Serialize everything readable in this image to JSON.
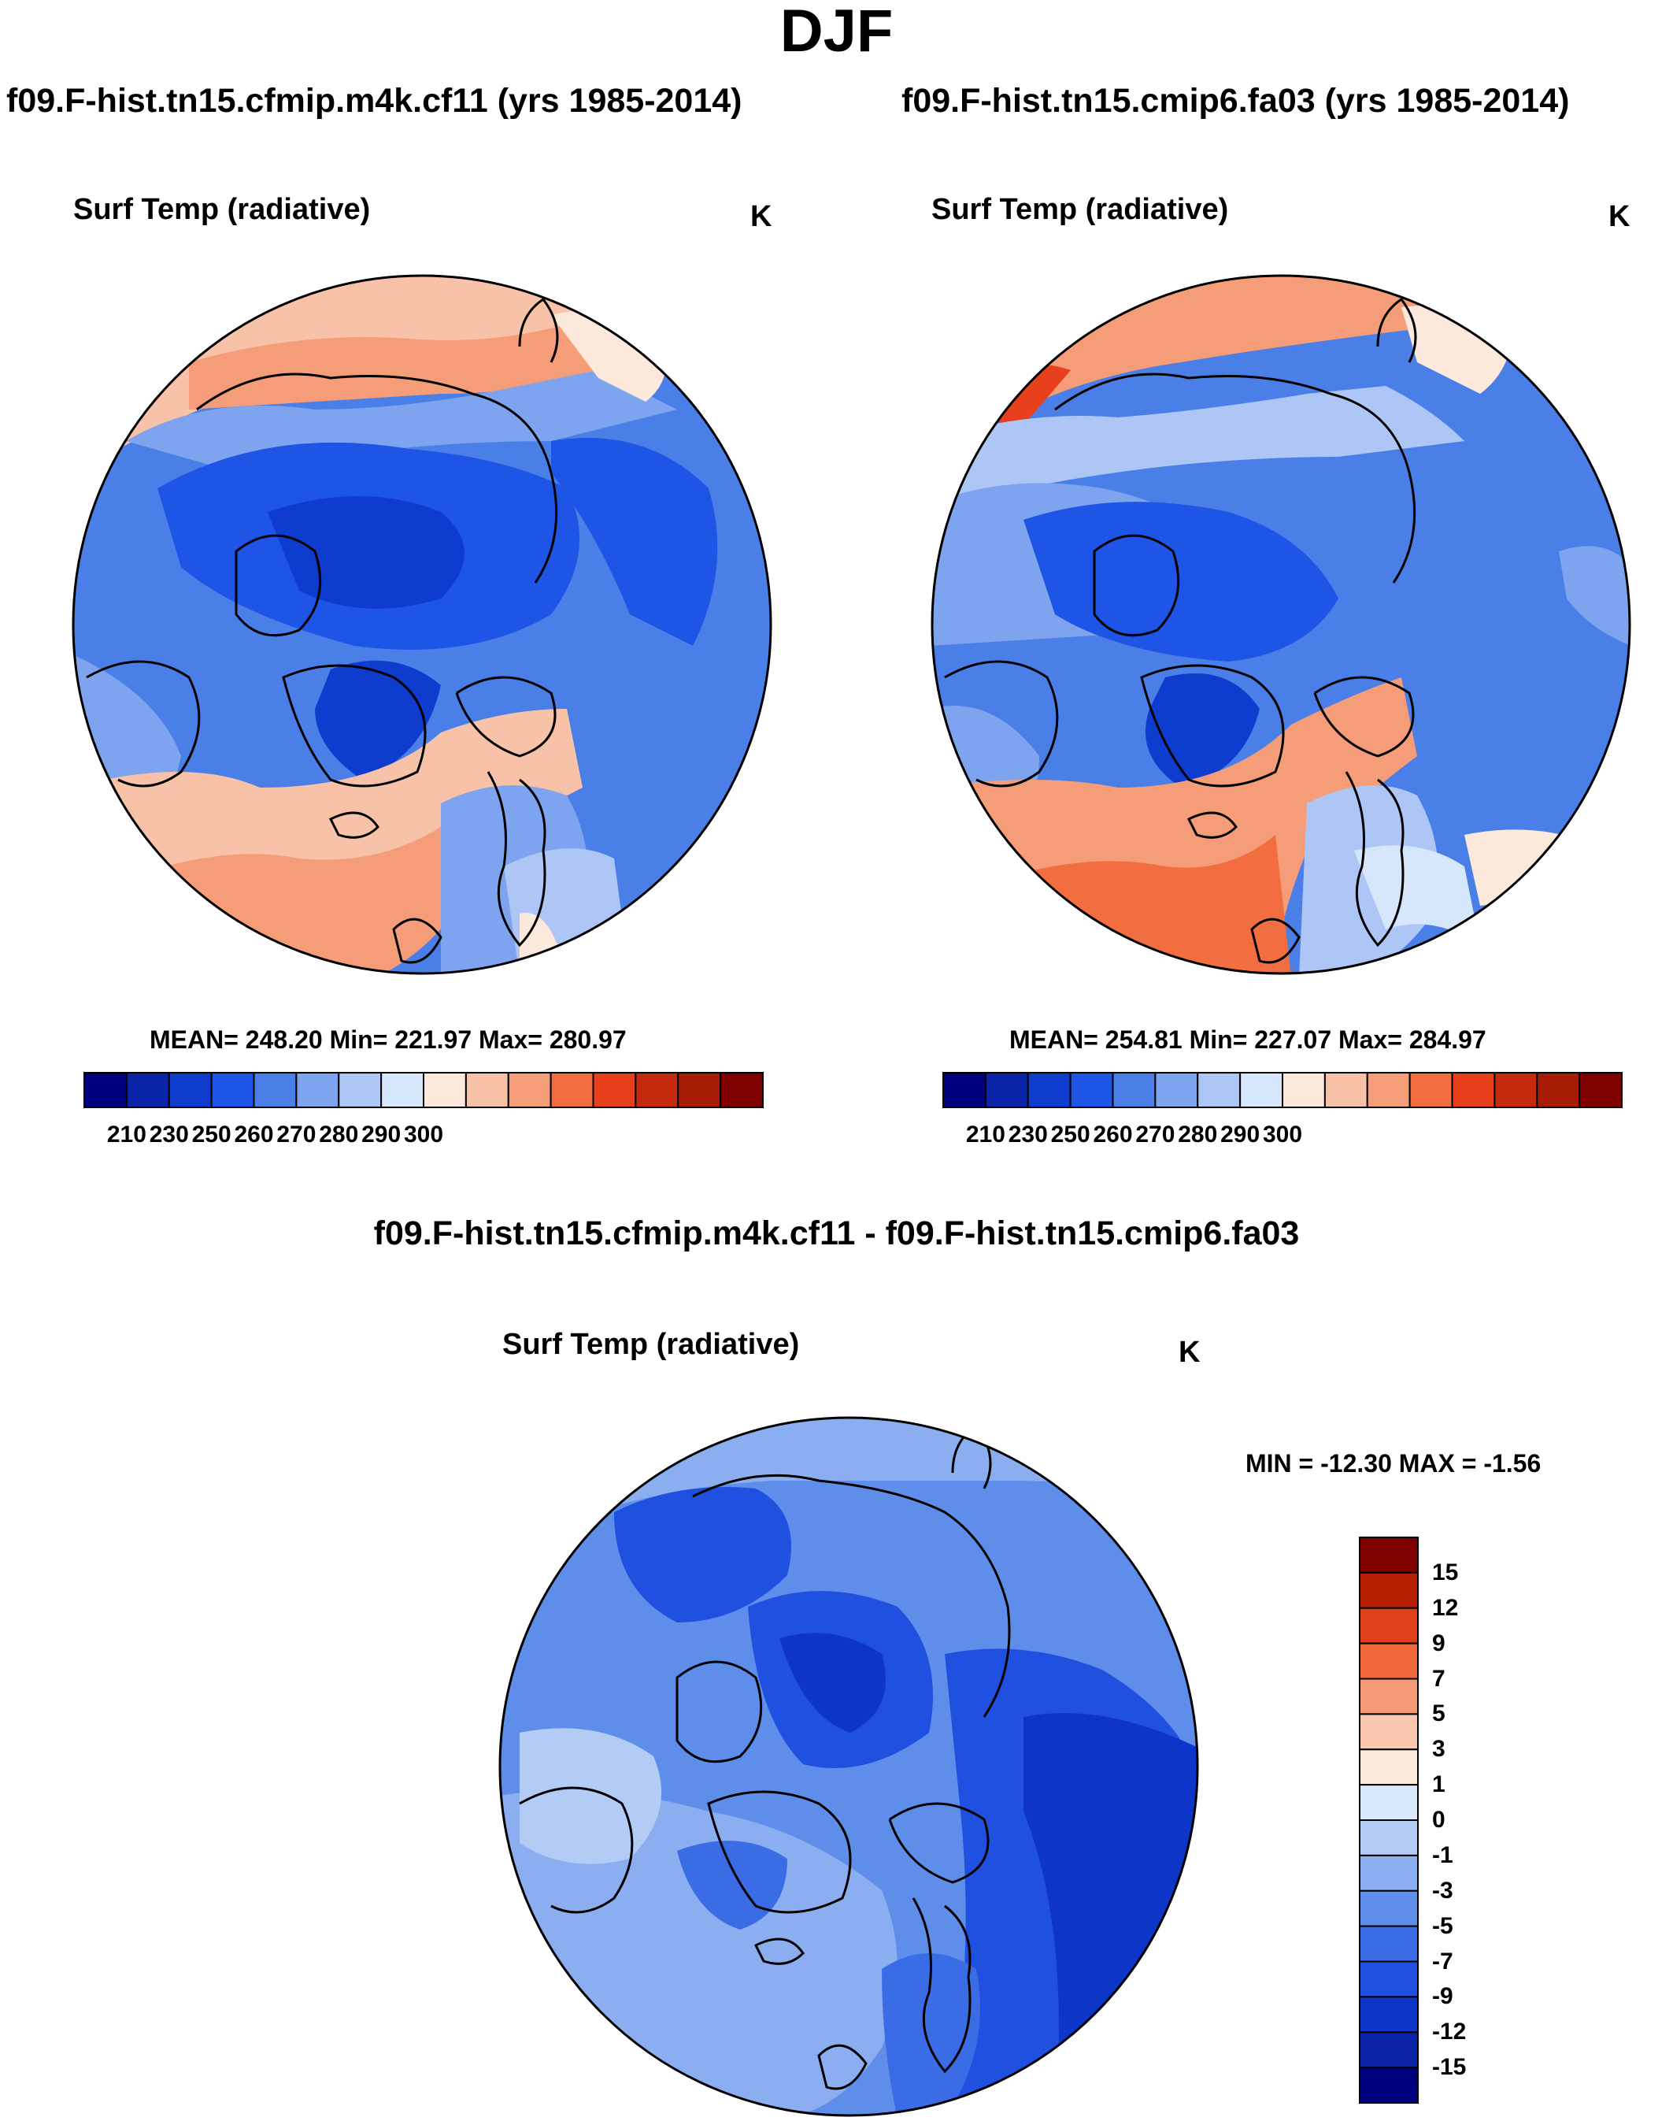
{
  "title": "DJF",
  "panels": [
    {
      "case": "f09.F-hist.tn15.cfmip.m4k.cf11 (yrs 1985-2014)",
      "variable": "Surf Temp (radiative)",
      "units": "K",
      "stats": "MEAN= 248.20  Min= 221.97  Max= 280.97"
    },
    {
      "case": "f09.F-hist.tn15.cmip6.fa03 (yrs 1985-2014)",
      "variable": "Surf Temp (radiative)",
      "units": "K",
      "stats": "MEAN= 254.81  Min= 227.07  Max= 284.97"
    }
  ],
  "diff": {
    "title": "f09.F-hist.tn15.cfmip.m4k.cf11 - f09.F-hist.tn15.cmip6.fa03",
    "variable": "Surf Temp (radiative)",
    "units": "K",
    "stats": "MIN = -12.30 MAX =  -1.56"
  },
  "colorbar_abs": {
    "labels": [
      "210",
      "230",
      "250",
      "260",
      "270",
      "280",
      "290",
      "300"
    ],
    "colors": [
      "#00007f",
      "#0a24a8",
      "#0d3ccf",
      "#1e55e6",
      "#4b7fe8",
      "#7ea4ef",
      "#aec6f5",
      "#d6e6fb",
      "#fde8dc",
      "#f8c2a8",
      "#f59c78",
      "#f26d3f",
      "#e8401c",
      "#c42a0e",
      "#a61c04",
      "#800000"
    ]
  },
  "colorbar_diff": {
    "labels": [
      "15",
      "12",
      "9",
      "7",
      "5",
      "3",
      "1",
      "0",
      "-1",
      "-3",
      "-5",
      "-7",
      "-9",
      "-12",
      "-15"
    ],
    "colors": [
      "#800000",
      "#b82005",
      "#e0401a",
      "#f26a3c",
      "#f59a76",
      "#f9c7ae",
      "#fde9dc",
      "#d9e8fb",
      "#b3ccf6",
      "#8aaeef",
      "#5f8eea",
      "#3a6ce6",
      "#1f50e0",
      "#0d36c8",
      "#0a22a6",
      "#00007f"
    ]
  }
}
